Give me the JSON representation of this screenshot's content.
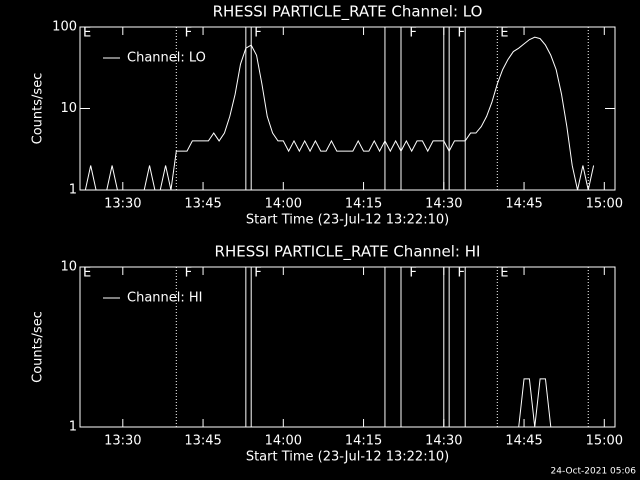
{
  "footer": "24-Oct-2021 05:06",
  "chart_data": [
    {
      "type": "line",
      "title": "RHESSI PARTICLE_RATE Channel: LO",
      "xlabel": "Start Time (23-Jul-12 13:22:10)",
      "ylabel": "Counts/sec",
      "log_y": true,
      "xlim": [
        "13:22",
        "15:02"
      ],
      "xticks": [
        "13:30",
        "13:45",
        "14:00",
        "14:15",
        "14:30",
        "14:45",
        "15:00"
      ],
      "ylim": [
        1,
        100
      ],
      "yticks": [
        1,
        10,
        100
      ],
      "flag_lines": [
        {
          "x": "13:40",
          "dotted": true
        },
        {
          "x": "13:53",
          "dotted": false
        },
        {
          "x": "13:54",
          "dotted": false
        },
        {
          "x": "14:19",
          "dotted": false
        },
        {
          "x": "14:22",
          "dotted": false
        },
        {
          "x": "14:30",
          "dotted": false
        },
        {
          "x": "14:31",
          "dotted": false
        },
        {
          "x": "14:34",
          "dotted": false
        },
        {
          "x": "14:40",
          "dotted": true
        },
        {
          "x": "14:57",
          "dotted": true
        }
      ],
      "flags": [
        {
          "text": "E",
          "x": "13:22"
        },
        {
          "text": "F",
          "x": "13:41"
        },
        {
          "text": "F",
          "x": "13:54"
        },
        {
          "text": "F",
          "x": "14:23"
        },
        {
          "text": "F",
          "x": "14:32"
        },
        {
          "text": "E",
          "x": "14:40"
        }
      ],
      "x": [
        "13:22",
        "13:23",
        "13:24",
        "13:25",
        "13:26",
        "13:27",
        "13:28",
        "13:29",
        "13:30",
        "13:31",
        "13:32",
        "13:33",
        "13:34",
        "13:35",
        "13:36",
        "13:37",
        "13:38",
        "13:39",
        "13:40",
        "13:41",
        "13:42",
        "13:43",
        "13:44",
        "13:45",
        "13:46",
        "13:47",
        "13:48",
        "13:49",
        "13:50",
        "13:51",
        "13:52",
        "13:53",
        "13:54",
        "13:55",
        "13:56",
        "13:57",
        "13:58",
        "13:59",
        "14:00",
        "14:01",
        "14:02",
        "14:03",
        "14:04",
        "14:05",
        "14:06",
        "14:07",
        "14:08",
        "14:09",
        "14:10",
        "14:11",
        "14:12",
        "14:13",
        "14:14",
        "14:15",
        "14:16",
        "14:17",
        "14:18",
        "14:19",
        "14:20",
        "14:21",
        "14:22",
        "14:23",
        "14:24",
        "14:25",
        "14:26",
        "14:27",
        "14:28",
        "14:29",
        "14:30",
        "14:31",
        "14:32",
        "14:33",
        "14:34",
        "14:35",
        "14:36",
        "14:37",
        "14:38",
        "14:39",
        "14:40",
        "14:41",
        "14:42",
        "14:43",
        "14:44",
        "14:45",
        "14:46",
        "14:47",
        "14:48",
        "14:49",
        "14:50",
        "14:51",
        "14:52",
        "14:53",
        "14:54",
        "14:55",
        "14:56",
        "14:57",
        "14:58"
      ],
      "series": [
        {
          "name": "Channel: LO",
          "color": "#ffffff",
          "values": [
            1,
            1,
            2,
            1,
            1,
            1,
            2,
            1,
            1,
            1,
            1,
            1,
            1,
            2,
            1,
            1,
            2,
            1,
            3,
            3,
            3,
            4,
            4,
            4,
            4,
            5,
            4,
            5,
            8,
            15,
            35,
            55,
            60,
            45,
            20,
            8,
            5,
            4,
            4,
            3,
            4,
            3,
            4,
            3,
            4,
            3,
            3,
            4,
            3,
            3,
            3,
            3,
            4,
            3,
            3,
            4,
            3,
            4,
            3,
            4,
            3,
            4,
            3,
            4,
            4,
            3,
            4,
            4,
            4,
            3,
            4,
            4,
            4,
            5,
            5,
            6,
            8,
            12,
            20,
            30,
            40,
            50,
            55,
            62,
            70,
            75,
            72,
            60,
            45,
            30,
            15,
            6,
            2,
            1,
            2,
            1,
            2
          ]
        }
      ]
    },
    {
      "type": "line",
      "title": "RHESSI PARTICLE_RATE Channel: HI",
      "xlabel": "Start Time (23-Jul-12 13:22:10)",
      "ylabel": "Counts/sec",
      "log_y": true,
      "xlim": [
        "13:22",
        "15:02"
      ],
      "xticks": [
        "13:30",
        "13:45",
        "14:00",
        "14:15",
        "14:30",
        "14:45",
        "15:00"
      ],
      "ylim": [
        1,
        10
      ],
      "yticks": [
        1,
        10
      ],
      "flag_lines": [
        {
          "x": "13:40",
          "dotted": true
        },
        {
          "x": "13:53",
          "dotted": false
        },
        {
          "x": "13:54",
          "dotted": false
        },
        {
          "x": "14:19",
          "dotted": false
        },
        {
          "x": "14:22",
          "dotted": false
        },
        {
          "x": "14:30",
          "dotted": false
        },
        {
          "x": "14:31",
          "dotted": false
        },
        {
          "x": "14:34",
          "dotted": false
        },
        {
          "x": "14:40",
          "dotted": true
        },
        {
          "x": "14:57",
          "dotted": true
        }
      ],
      "flags": [
        {
          "text": "E",
          "x": "13:22"
        },
        {
          "text": "F",
          "x": "13:41"
        },
        {
          "text": "F",
          "x": "13:54"
        },
        {
          "text": "F",
          "x": "14:23"
        },
        {
          "text": "F",
          "x": "14:32"
        },
        {
          "text": "E",
          "x": "14:40"
        }
      ],
      "x": [
        "14:44",
        "14:45",
        "14:46",
        "14:47",
        "14:48",
        "14:49",
        "14:50"
      ],
      "series": [
        {
          "name": "Channel: HI",
          "color": "#ffffff",
          "values": [
            1,
            2,
            2,
            1,
            2,
            2,
            1
          ]
        }
      ]
    }
  ]
}
